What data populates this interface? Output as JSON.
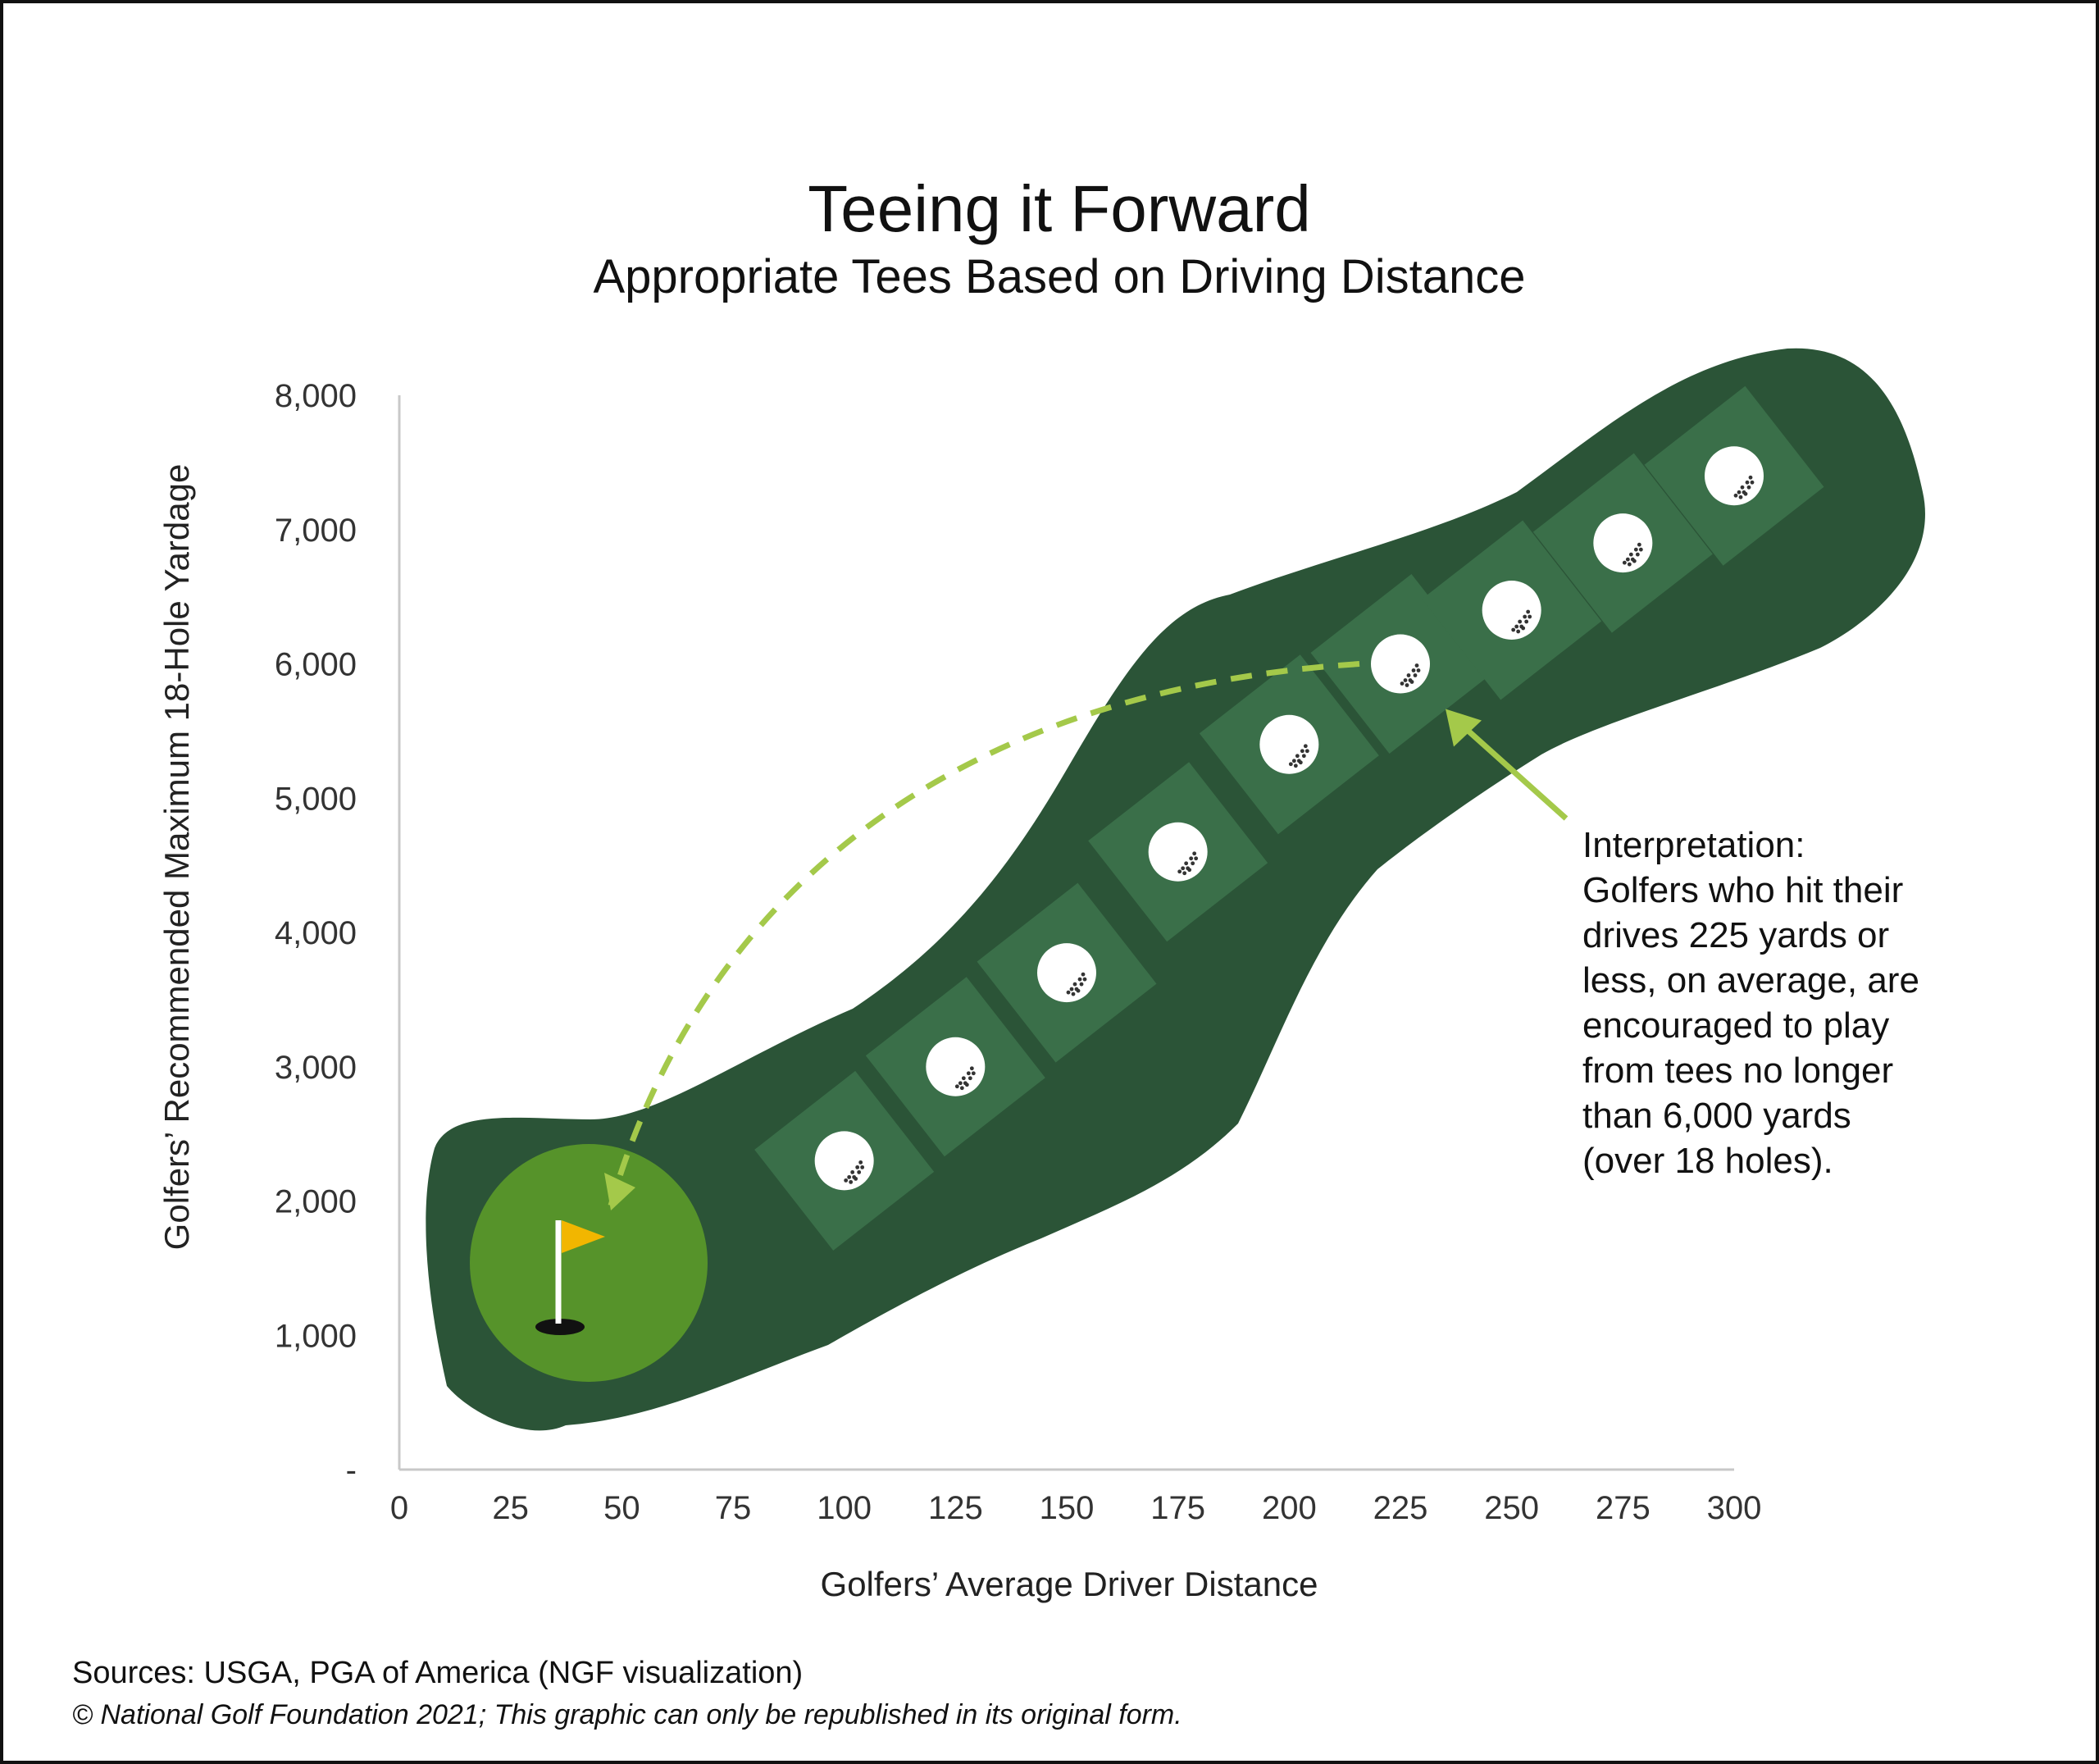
{
  "chart_data": {
    "type": "scatter",
    "title": "Teeing it Forward",
    "subtitle": "Appropriate Tees Based on Driving Distance",
    "xlabel": "Golfers’ Average Driver Distance",
    "ylabel": "Golfers’ Recommended Maximum 18-Hole Yardage",
    "xlim": [
      0,
      300
    ],
    "ylim": [
      0,
      8000
    ],
    "x_ticks": [
      "0",
      "25",
      "50",
      "75",
      "100",
      "125",
      "150",
      "175",
      "200",
      "225",
      "250",
      "275",
      "300"
    ],
    "y_ticks": [
      "-",
      "1,000",
      "2,000",
      "3,000",
      "4,000",
      "5,000",
      "6,000",
      "7,000",
      "8,000"
    ],
    "grid": false,
    "points": [
      {
        "x": 100,
        "y": 2300
      },
      {
        "x": 125,
        "y": 3000
      },
      {
        "x": 150,
        "y": 3700
      },
      {
        "x": 175,
        "y": 4600
      },
      {
        "x": 200,
        "y": 5400
      },
      {
        "x": 225,
        "y": 6000
      },
      {
        "x": 250,
        "y": 6400
      },
      {
        "x": 275,
        "y": 6900
      },
      {
        "x": 300,
        "y": 7400
      }
    ],
    "highlight_point": {
      "x": 225,
      "y": 6000
    },
    "annotation_lines": [
      "Interpretation:",
      "Golfers who hit their",
      "drives 225 yards or",
      "less, on average, are",
      "encouraged to play",
      "from tees no longer",
      "than 6,000 yards",
      "(over 18 holes)."
    ]
  },
  "footer": {
    "sources": "Sources: USGA, PGA of America (NGF visualization)",
    "copyright": "© National Golf Foundation 2021; This graphic can only be republished in its original form."
  },
  "colors": {
    "fairway": "#2b5437",
    "tee_box": "#3a6f49",
    "green": "#56932a",
    "flag": "#f2b600",
    "ball": "#ffffff",
    "dashed_arrow": "#a4c94a",
    "axis": "#c8c8c8"
  }
}
